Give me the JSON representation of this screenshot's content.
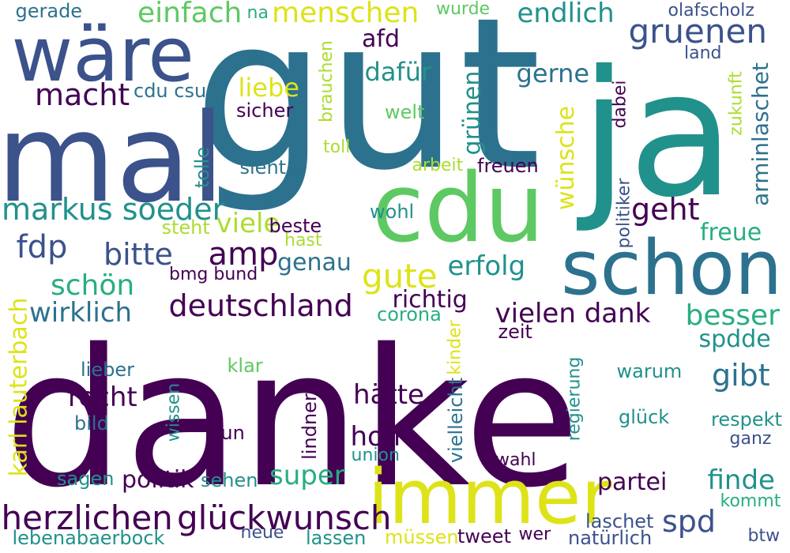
{
  "palette": {
    "p1": "#440154",
    "p2": "#3b528b",
    "p3": "#2c728e",
    "p4": "#21918c",
    "p5": "#28ae80",
    "p6": "#5ec962",
    "p7": "#addc30",
    "p8": "#dde318"
  },
  "words": [
    {
      "text": "danke",
      "color": "#440154"
    },
    {
      "text": "gut",
      "color": "#2c728e"
    },
    {
      "text": "ja",
      "color": "#21918c"
    },
    {
      "text": "mal",
      "color": "#3b528b"
    },
    {
      "text": "immer",
      "color": "#dde318"
    },
    {
      "text": "cdu",
      "color": "#5ec962"
    },
    {
      "text": "schon",
      "color": "#2c728e"
    },
    {
      "text": "wäre",
      "color": "#3b528b"
    },
    {
      "text": "herzlichen",
      "color": "#440154"
    },
    {
      "text": "glückwunsch",
      "color": "#440154"
    },
    {
      "text": "deutschland",
      "color": "#440154"
    },
    {
      "text": "markus soeder",
      "color": "#21918c"
    },
    {
      "text": "gruenen",
      "color": "#3b528b"
    },
    {
      "text": "menschen",
      "color": "#dde318"
    },
    {
      "text": "einfach",
      "color": "#5ec962"
    },
    {
      "text": "endlich",
      "color": "#21918c"
    },
    {
      "text": "macht",
      "color": "#440154"
    },
    {
      "text": "liebe",
      "color": "#dde318"
    },
    {
      "text": "gerade",
      "color": "#2c728e"
    },
    {
      "text": "na",
      "color": "#28ae80"
    },
    {
      "text": "wurde",
      "color": "#5ec962"
    },
    {
      "text": "olafscholz",
      "color": "#3b528b"
    },
    {
      "text": "land",
      "color": "#3b528b"
    },
    {
      "text": "afd",
      "color": "#440154"
    },
    {
      "text": "dafür",
      "color": "#21918c"
    },
    {
      "text": "gerne",
      "color": "#2c728e"
    },
    {
      "text": "cdu csu",
      "color": "#2c728e"
    },
    {
      "text": "sicher",
      "color": "#440154"
    },
    {
      "text": "welt",
      "color": "#5ec962"
    },
    {
      "text": "toll",
      "color": "#addc30"
    },
    {
      "text": "sieht",
      "color": "#2c728e"
    },
    {
      "text": "arbeit",
      "color": "#addc30"
    },
    {
      "text": "freuen",
      "color": "#440154"
    },
    {
      "text": "geht",
      "color": "#440154"
    },
    {
      "text": "freue",
      "color": "#28ae80"
    },
    {
      "text": "fdp",
      "color": "#3b528b"
    },
    {
      "text": "bitte",
      "color": "#3b528b"
    },
    {
      "text": "amp",
      "color": "#440154"
    },
    {
      "text": "viele",
      "color": "#addc30"
    },
    {
      "text": "beste",
      "color": "#440154"
    },
    {
      "text": "steht",
      "color": "#addc30"
    },
    {
      "text": "hast",
      "color": "#addc30"
    },
    {
      "text": "wohl",
      "color": "#21918c"
    },
    {
      "text": "genau",
      "color": "#2c728e"
    },
    {
      "text": "gute",
      "color": "#dde318"
    },
    {
      "text": "erfolg",
      "color": "#21918c"
    },
    {
      "text": "bmg bund",
      "color": "#440154"
    },
    {
      "text": "schön",
      "color": "#28ae80"
    },
    {
      "text": "wirklich",
      "color": "#2c728e"
    },
    {
      "text": "richtig",
      "color": "#440154"
    },
    {
      "text": "corona",
      "color": "#28ae80"
    },
    {
      "text": "vielen dank",
      "color": "#440154"
    },
    {
      "text": "besser",
      "color": "#28ae80"
    },
    {
      "text": "spdde",
      "color": "#21918c"
    },
    {
      "text": "zeit",
      "color": "#440154"
    },
    {
      "text": "gibt",
      "color": "#2c728e"
    },
    {
      "text": "lieber",
      "color": "#2c728e"
    },
    {
      "text": "klar",
      "color": "#5ec962"
    },
    {
      "text": "warum",
      "color": "#21918c"
    },
    {
      "text": "recht",
      "color": "#440154"
    },
    {
      "text": "hätte",
      "color": "#440154"
    },
    {
      "text": "bild",
      "color": "#2c728e"
    },
    {
      "text": "tun",
      "color": "#440154"
    },
    {
      "text": "glück",
      "color": "#21918c"
    },
    {
      "text": "respekt",
      "color": "#21918c"
    },
    {
      "text": "ganz",
      "color": "#3b528b"
    },
    {
      "text": "hoffe",
      "color": "#440154"
    },
    {
      "text": "union",
      "color": "#21918c"
    },
    {
      "text": "super",
      "color": "#28ae80"
    },
    {
      "text": "sagen",
      "color": "#21918c"
    },
    {
      "text": "politik",
      "color": "#440154"
    },
    {
      "text": "sehen",
      "color": "#21918c"
    },
    {
      "text": "wahl",
      "color": "#440154"
    },
    {
      "text": "partei",
      "color": "#440154"
    },
    {
      "text": "finde",
      "color": "#21918c"
    },
    {
      "text": "kommt",
      "color": "#28ae80"
    },
    {
      "text": "spd",
      "color": "#3b528b"
    },
    {
      "text": "laschet",
      "color": "#3b528b"
    },
    {
      "text": "lebenabaerbock",
      "color": "#21918c"
    },
    {
      "text": "neue",
      "color": "#3b528b"
    },
    {
      "text": "lassen",
      "color": "#21918c"
    },
    {
      "text": "müssen",
      "color": "#dde318"
    },
    {
      "text": "tweet",
      "color": "#440154"
    },
    {
      "text": "wer",
      "color": "#440154"
    },
    {
      "text": "natürlich",
      "color": "#3b528b"
    },
    {
      "text": "btw",
      "color": "#3b528b"
    },
    {
      "text": "brauchen",
      "color": "#addc30"
    },
    {
      "text": "grünen",
      "color": "#21918c"
    },
    {
      "text": "wünsche",
      "color": "#dde318"
    },
    {
      "text": "dabei",
      "color": "#440154"
    },
    {
      "text": "zukunft",
      "color": "#addc30"
    },
    {
      "text": "arminlaschet",
      "color": "#2c728e"
    },
    {
      "text": "tolle",
      "color": "#21918c"
    },
    {
      "text": "politiker",
      "color": "#3b528b"
    },
    {
      "text": "karl lauterbach",
      "color": "#dde318"
    },
    {
      "text": "kinder",
      "color": "#dde318"
    },
    {
      "text": "wissen",
      "color": "#21918c"
    },
    {
      "text": "lindner",
      "color": "#440154"
    },
    {
      "text": "vielleicht",
      "color": "#2c728e"
    },
    {
      "text": "regierung",
      "color": "#21918c"
    }
  ]
}
